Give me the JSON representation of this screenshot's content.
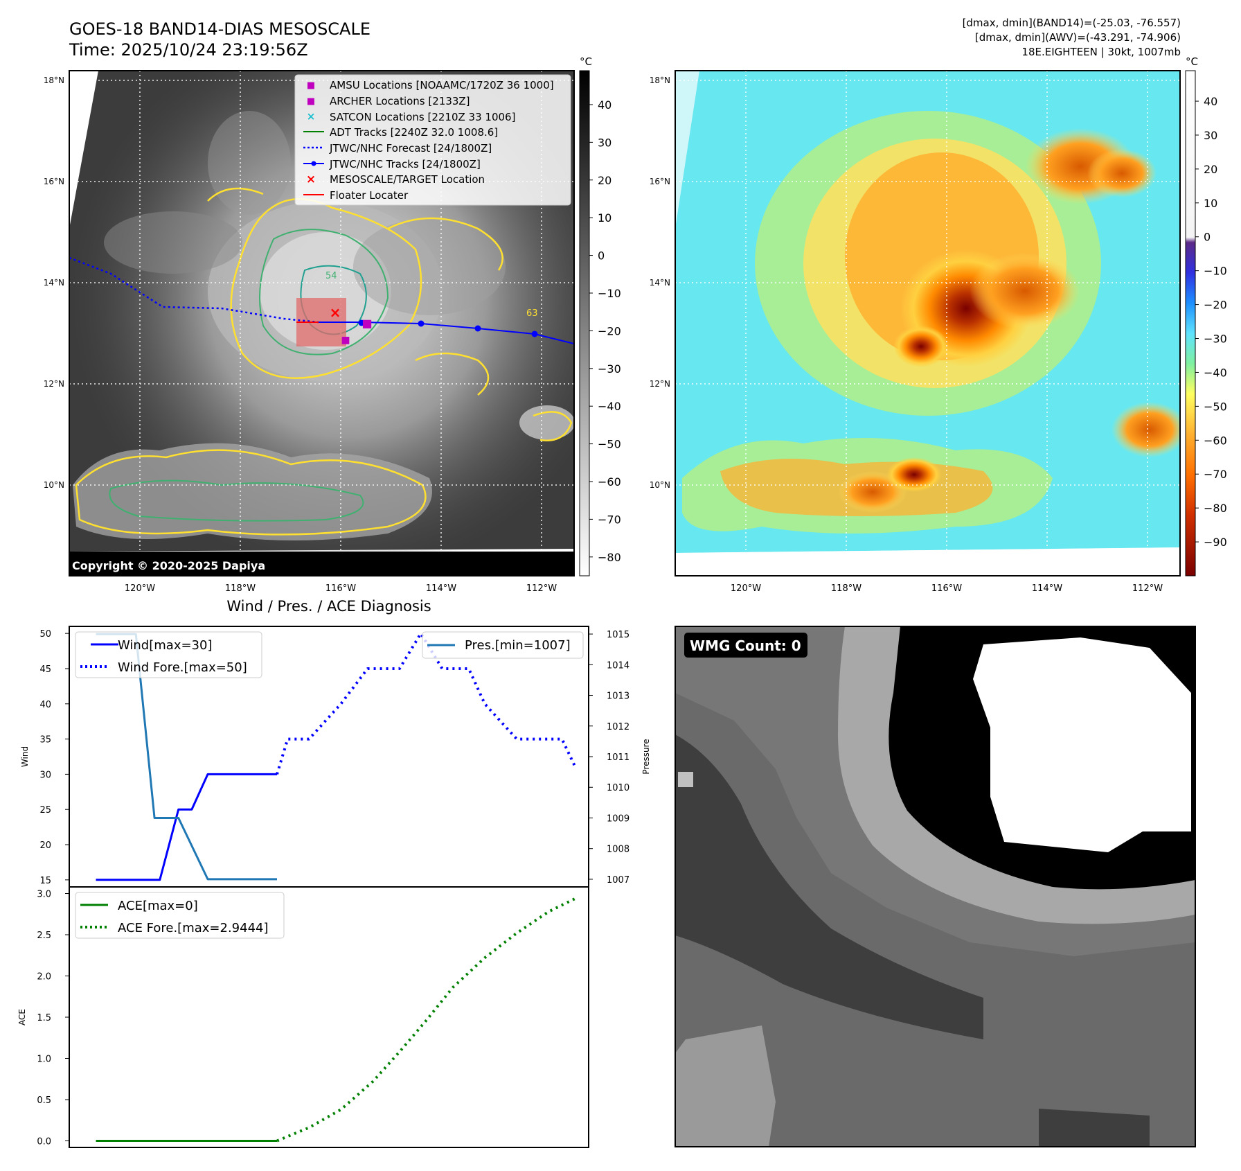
{
  "header": {
    "title_line1": "GOES-18 BAND14-DIAS MESOSCALE",
    "title_line2": "Time: 2025/10/24 23:19:56Z",
    "info_line1": "[dmax, dmin](BAND14)=(-25.03, -76.557)",
    "info_line2": "[dmax, dmin](AWV)=(-43.291, -74.906)",
    "info_line3": "18E.EIGHTEEN | 30kt, 1007mb"
  },
  "ir_map": {
    "copyright": "Copyright © 2020-2025 Dapiya",
    "cbar_unit": "°C",
    "cbar_ticks": [
      40,
      30,
      20,
      10,
      0,
      -10,
      -20,
      -30,
      -40,
      -50,
      -60,
      -70,
      -80
    ],
    "lat_labels": [
      "18°N",
      "16°N",
      "14°N",
      "12°N",
      "10°N"
    ],
    "lon_labels": [
      "120°W",
      "118°W",
      "116°W",
      "114°W",
      "112°W"
    ],
    "contour_labels": [
      "54",
      "63"
    ],
    "legend": [
      {
        "label": "AMSU Locations [NOAAMC/1720Z 36 1000]",
        "color": "#bf00bf"
      },
      {
        "label": "ARCHER Locations [2133Z]",
        "color": "#bf00bf"
      },
      {
        "label": "SATCON Locations [2210Z 33 1006]",
        "color": "#17becf"
      },
      {
        "label": "ADT Tracks [2240Z 32.0 1008.6]",
        "color": "#008000"
      },
      {
        "label": "JTWC/NHC Forecast [24/1800Z]",
        "color": "#0000ff"
      },
      {
        "label": "JTWC/NHC Tracks [24/1800Z]",
        "color": "#0000ff"
      },
      {
        "label": "MESOSCALE/TARGET Location",
        "color": "#ff0000"
      },
      {
        "label": "Floater Locater",
        "color": "#ff0000"
      }
    ]
  },
  "enhanced_map": {
    "cbar_unit": "°C",
    "cbar_ticks": [
      40,
      30,
      20,
      10,
      0,
      -10,
      -20,
      -30,
      -40,
      -50,
      -60,
      -70,
      -80,
      -90
    ],
    "lat_labels": [
      "18°N",
      "16°N",
      "14°N",
      "12°N",
      "10°N"
    ],
    "lon_labels": [
      "120°W",
      "118°W",
      "116°W",
      "114°W",
      "112°W"
    ]
  },
  "wmg_panel": {
    "label": "WMG Count: 0"
  },
  "chart_data": [
    {
      "type": "line",
      "title": "Wind / Pres. / ACE Diagnosis",
      "ylabel": "Wind",
      "y2label": "Pressure",
      "ylim": [
        14,
        51
      ],
      "y2lim": [
        1006.75,
        1015.25
      ],
      "yticks": [
        15,
        20,
        25,
        30,
        35,
        40,
        45,
        50
      ],
      "y2ticks": [
        1007,
        1008,
        1009,
        1010,
        1011,
        1012,
        1013,
        1014,
        1015
      ],
      "x": [
        0,
        1,
        2,
        3,
        4,
        5,
        6,
        7,
        8,
        9,
        10,
        11,
        12,
        13,
        14,
        15
      ],
      "series": [
        {
          "name": "Wind[max=30]",
          "style": "solid",
          "color": "#0000ff",
          "axis": "left",
          "x": [
            0,
            1.5,
            2.4,
            3.1,
            3.6,
            4.2,
            5.0,
            5.9,
            6.8
          ],
          "values": [
            15,
            15,
            15,
            25,
            25,
            30,
            30,
            30,
            30
          ]
        },
        {
          "name": "Wind Fore.[max=50]",
          "style": "dotted",
          "color": "#0000ff",
          "axis": "left",
          "x": [
            6.8,
            7.2,
            8.0,
            9.2,
            10.2,
            11.4,
            12.2,
            13.0,
            14.0,
            14.6,
            15.8,
            16.5,
            17.5,
            18.0
          ],
          "values": [
            30,
            35,
            35,
            40,
            45,
            45,
            50,
            45,
            45,
            40,
            35,
            35,
            35,
            31
          ]
        },
        {
          "name": "Pres.[min=1007]",
          "style": "solid",
          "color": "#1f77b4",
          "axis": "right",
          "x": [
            0,
            1.0,
            1.5,
            2.2,
            3.1,
            4.2,
            5.0,
            5.9,
            6.8
          ],
          "values": [
            1015,
            1015,
            1015,
            1009,
            1009,
            1007,
            1007,
            1007,
            1007
          ]
        }
      ],
      "legend": [
        "Wind[max=30]",
        "Wind Fore.[max=50]",
        "Pres.[min=1007]"
      ]
    },
    {
      "type": "line",
      "ylabel": "ACE",
      "ylim": [
        -0.08,
        3.08
      ],
      "yticks": [
        "0.0",
        "0.5",
        "1.0",
        "1.5",
        "2.0",
        "2.5",
        "3.0"
      ],
      "series": [
        {
          "name": "ACE[max=0]",
          "style": "solid",
          "color": "#008000",
          "x": [
            0,
            6.8
          ],
          "values": [
            0,
            0
          ]
        },
        {
          "name": "ACE Fore.[max=2.9444]",
          "style": "dotted",
          "color": "#008000",
          "x": [
            6.8,
            8.0,
            9.2,
            10.4,
            11.4,
            12.4,
            13.4,
            14.6,
            15.8,
            17.0,
            18.0
          ],
          "values": [
            0,
            0.16,
            0.38,
            0.72,
            1.08,
            1.46,
            1.86,
            2.22,
            2.52,
            2.78,
            2.94
          ]
        }
      ],
      "legend": [
        "ACE[max=0]",
        "ACE Fore.[max=2.9444]"
      ]
    }
  ]
}
